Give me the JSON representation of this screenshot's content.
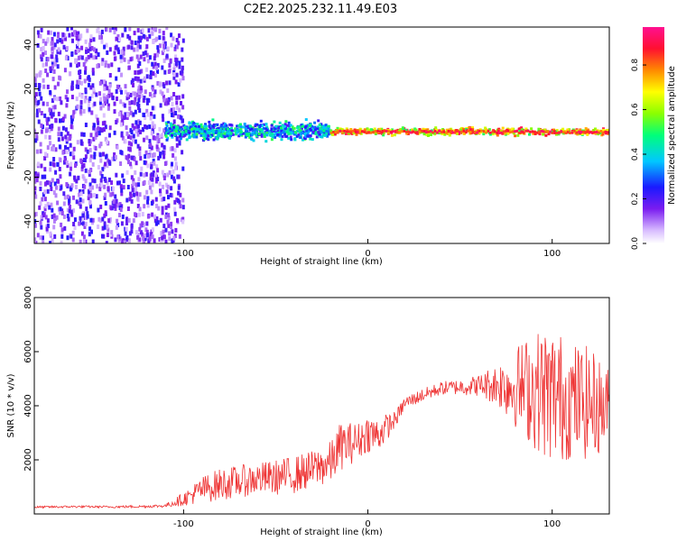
{
  "chart_data": [
    {
      "type": "heatmap",
      "title": "C2E2.2025.232.11.49.E03",
      "xlabel": "Height of straight line (km)",
      "ylabel": "Frequency (Hz)",
      "xlim": [
        -181,
        131
      ],
      "ylim": [
        -50,
        48
      ],
      "xticks": [
        -100,
        0,
        100
      ],
      "yticks": [
        40,
        20,
        0,
        -20,
        -40
      ],
      "colorbar": {
        "label": "Normalized spectral amplitude",
        "range": [
          0,
          0.97
        ],
        "ticks": [
          "0.0",
          "0.2",
          "0.4",
          "0.6",
          "0.8"
        ],
        "colors": [
          "#ffffff",
          "#c9a6ff",
          "#7a1cf0",
          "#1a1aff",
          "#00c8ff",
          "#00ff7a",
          "#8aff00",
          "#ffff00",
          "#ff7a00",
          "#ff1030",
          "#ff1080"
        ]
      },
      "regions": [
        {
          "x_range": [
            -181,
            -100
          ],
          "description_value": "noise",
          "freq_spread": [
            -50,
            48
          ],
          "amplitude": [
            0.05,
            0.25
          ]
        },
        {
          "x_range": [
            -110,
            -20
          ],
          "freq_spread": [
            -5,
            6
          ],
          "amplitude": [
            0.2,
            0.55
          ]
        },
        {
          "x_range": [
            -20,
            131
          ],
          "freq_spread": [
            -2,
            2.5
          ],
          "amplitude": [
            0.5,
            0.95
          ]
        }
      ]
    },
    {
      "type": "line",
      "xlabel": "Height of straight line (km)",
      "ylabel": "SNR (10 * v/v)",
      "xlim": [
        -181,
        131
      ],
      "ylim": [
        0,
        8000
      ],
      "xticks": [
        -100,
        0,
        100
      ],
      "yticks": [
        2000,
        4000,
        6000,
        8000
      ],
      "series": [
        {
          "name": "SNR",
          "color": "#ee3333",
          "x": [
            -181,
            -160,
            -140,
            -120,
            -110,
            -100,
            -90,
            -80,
            -70,
            -60,
            -50,
            -40,
            -30,
            -20,
            -15,
            -10,
            -5,
            0,
            5,
            10,
            15,
            20,
            30,
            40,
            50,
            60,
            70,
            80,
            90,
            100,
            110,
            120,
            131
          ],
          "values": [
            250,
            270,
            260,
            280,
            300,
            550,
            900,
            1100,
            1200,
            1300,
            1350,
            1450,
            1650,
            1900,
            2500,
            2600,
            2700,
            3000,
            2900,
            3200,
            3500,
            4100,
            4400,
            4650,
            4700,
            4750,
            4800,
            4700,
            4600,
            4400,
            4200,
            4100,
            3900
          ],
          "spread": [
            40,
            40,
            40,
            50,
            60,
            250,
            500,
            600,
            600,
            600,
            650,
            700,
            700,
            800,
            900,
            800,
            700,
            700,
            700,
            500,
            300,
            250,
            250,
            250,
            300,
            400,
            800,
            1500,
            2200,
            2600,
            2200,
            2100,
            1500
          ]
        }
      ]
    }
  ]
}
